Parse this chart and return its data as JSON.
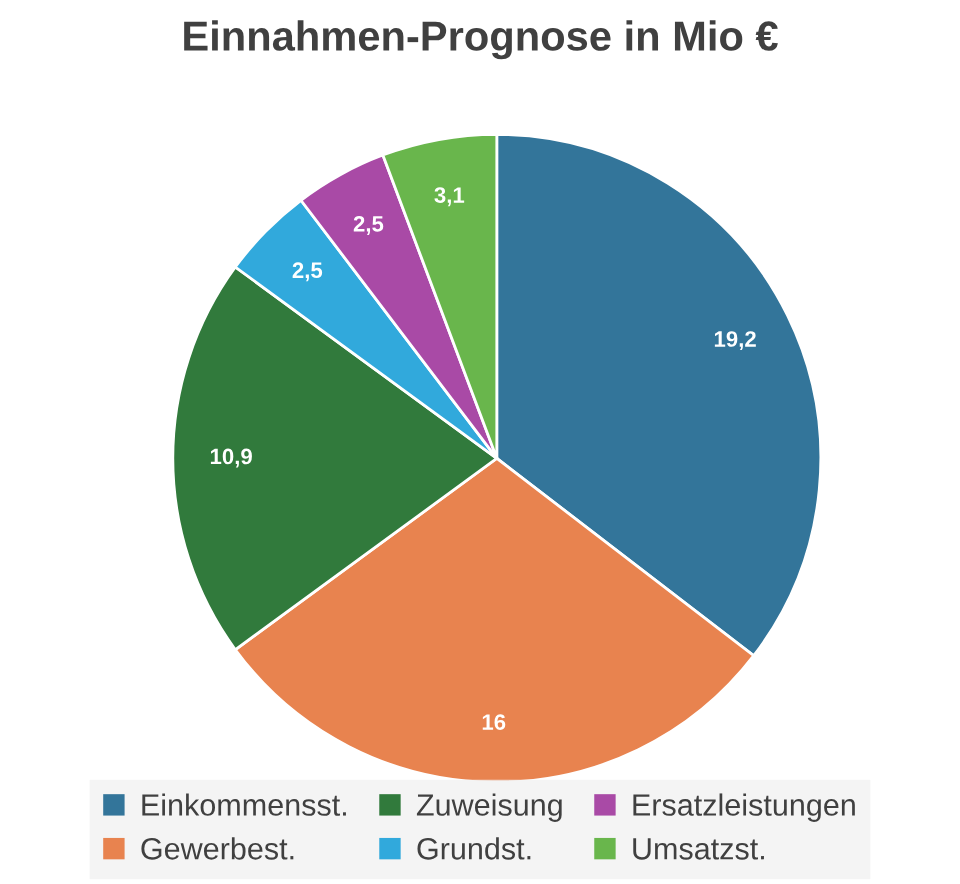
{
  "chart_data": {
    "type": "pie",
    "title": "Einnahmen-Prognose in Mio €",
    "categories": [
      "Einkommensst.",
      "Gewerbest.",
      "Zuweisung",
      "Grundst.",
      "Ersatzleistungen",
      "Umsatzst."
    ],
    "values": [
      19.2,
      16,
      10.9,
      2.5,
      2.5,
      3.1
    ],
    "value_labels": [
      "19,2",
      "16",
      "10,9",
      "2,5",
      "2,5",
      "3,1"
    ],
    "colors": [
      "#33759a",
      "#e8834f",
      "#317a3c",
      "#31a9dc",
      "#a94aa6",
      "#69b64c"
    ],
    "legend": "bottom"
  }
}
